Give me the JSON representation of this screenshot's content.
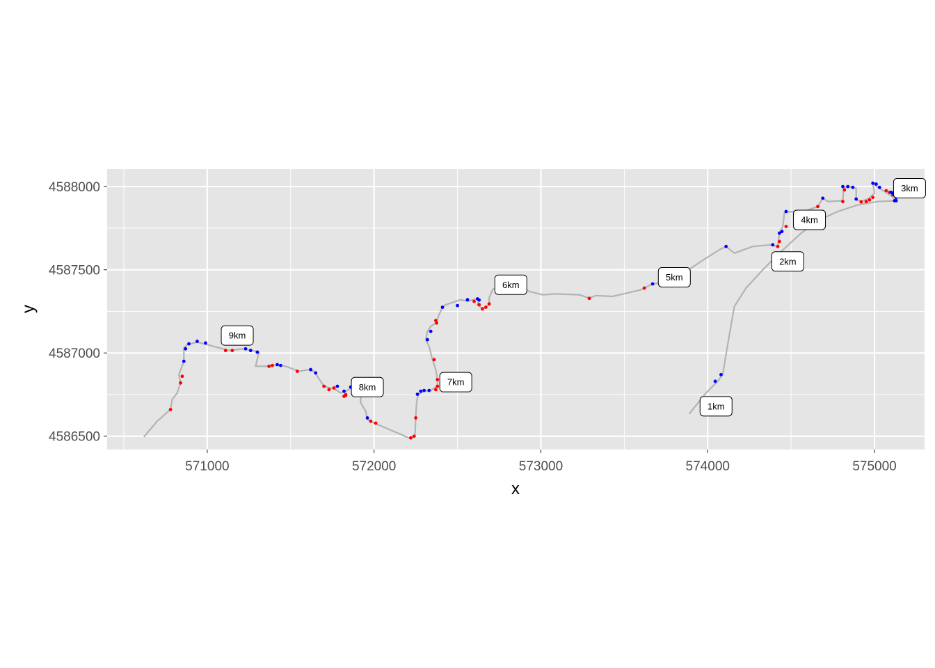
{
  "chart_data": {
    "type": "scatter",
    "title": "",
    "xlabel": "x",
    "ylabel": "y",
    "xlim": [
      570400,
      575300
    ],
    "ylim": [
      4586420,
      4588105
    ],
    "x_ticks": [
      571000,
      572000,
      573000,
      574000,
      575000
    ],
    "y_ticks": [
      4586500,
      4587000,
      4587500,
      4588000
    ],
    "x_tick_labels": [
      "571000",
      "572000",
      "573000",
      "574000",
      "575000"
    ],
    "y_tick_labels": [
      "4586500",
      "4587000",
      "4587500",
      "4588000"
    ],
    "grid": true,
    "background": "#e5e5e5",
    "colors": {
      "track": "#b3b3b3",
      "red_points": "#ff0000",
      "blue_points": "#0000ff",
      "grid": "#ffffff"
    },
    "track": [
      [
        573890,
        4586635
      ],
      [
        573990,
        4586760
      ],
      [
        574060,
        4586830
      ],
      [
        574090,
        4586870
      ],
      [
        574120,
        4587050
      ],
      [
        574160,
        4587280
      ],
      [
        574230,
        4587390
      ],
      [
        574330,
        4587500
      ],
      [
        574440,
        4587610
      ],
      [
        574560,
        4587720
      ],
      [
        574670,
        4587800
      ],
      [
        574780,
        4587850
      ],
      [
        574900,
        4587890
      ],
      [
        575020,
        4587910
      ],
      [
        575130,
        4587915
      ],
      [
        575120,
        4587930
      ],
      [
        575070,
        4587965
      ],
      [
        575020,
        4587995
      ],
      [
        574990,
        4588020
      ],
      [
        575000,
        4587960
      ],
      [
        574960,
        4587925
      ],
      [
        574920,
        4587912
      ],
      [
        574890,
        4587920
      ],
      [
        574890,
        4587990
      ],
      [
        574840,
        4588000
      ],
      [
        574815,
        4587990
      ],
      [
        574810,
        4587915
      ],
      [
        574720,
        4587910
      ],
      [
        574690,
        4587930
      ],
      [
        574660,
        4587880
      ],
      [
        574590,
        4587855
      ],
      [
        574510,
        4587850
      ],
      [
        574460,
        4587845
      ],
      [
        574450,
        4587760
      ],
      [
        574430,
        4587720
      ],
      [
        574420,
        4587640
      ],
      [
        574380,
        4587650
      ],
      [
        574270,
        4587640
      ],
      [
        574160,
        4587600
      ],
      [
        574110,
        4587640
      ],
      [
        574070,
        4587620
      ],
      [
        573990,
        4587570
      ],
      [
        573900,
        4587510
      ],
      [
        573830,
        4587460
      ],
      [
        573710,
        4587420
      ],
      [
        573670,
        4587415
      ],
      [
        573600,
        4587380
      ],
      [
        573430,
        4587340
      ],
      [
        573330,
        4587345
      ],
      [
        573290,
        4587330
      ],
      [
        573230,
        4587350
      ],
      [
        573090,
        4587355
      ],
      [
        573010,
        4587350
      ],
      [
        572930,
        4587370
      ],
      [
        572860,
        4587405
      ],
      [
        572760,
        4587410
      ],
      [
        572710,
        4587380
      ],
      [
        572690,
        4587330
      ],
      [
        572690,
        4587290
      ],
      [
        572650,
        4587265
      ],
      [
        572620,
        4587290
      ],
      [
        572630,
        4587320
      ],
      [
        572610,
        4587325
      ],
      [
        572560,
        4587310
      ],
      [
        572520,
        4587320
      ],
      [
        572430,
        4587290
      ],
      [
        572410,
        4587275
      ],
      [
        572390,
        4587230
      ],
      [
        572370,
        4587180
      ],
      [
        572340,
        4587160
      ],
      [
        572320,
        4587130
      ],
      [
        572310,
        4587080
      ],
      [
        572330,
        4587040
      ],
      [
        572350,
        4586960
      ],
      [
        572370,
        4586900
      ],
      [
        572380,
        4586840
      ],
      [
        572380,
        4586800
      ],
      [
        572340,
        4586775
      ],
      [
        572300,
        4586770
      ],
      [
        572265,
        4586752
      ],
      [
        572255,
        4586700
      ],
      [
        572250,
        4586610
      ],
      [
        572245,
        4586500
      ],
      [
        572220,
        4586485
      ],
      [
        572140,
        4586520
      ],
      [
        572010,
        4586575
      ],
      [
        571960,
        4586600
      ],
      [
        571950,
        4586650
      ],
      [
        571920,
        4586700
      ],
      [
        571920,
        4586760
      ],
      [
        571860,
        4586790
      ],
      [
        571840,
        4586775
      ],
      [
        571800,
        4586760
      ],
      [
        571770,
        4586780
      ],
      [
        571700,
        4586800
      ],
      [
        571640,
        4586890
      ],
      [
        571610,
        4586900
      ],
      [
        571550,
        4586890
      ],
      [
        571470,
        4586920
      ],
      [
        571420,
        4586930
      ],
      [
        571370,
        4586920
      ],
      [
        571290,
        4586920
      ],
      [
        571310,
        4587005
      ],
      [
        571270,
        4587015
      ],
      [
        571220,
        4587025
      ],
      [
        571130,
        4587015
      ],
      [
        571000,
        4587050
      ],
      [
        570940,
        4587065
      ],
      [
        570880,
        4587050
      ],
      [
        570860,
        4587030
      ],
      [
        570860,
        4586950
      ],
      [
        570830,
        4586870
      ],
      [
        570840,
        4586820
      ],
      [
        570820,
        4586760
      ],
      [
        570790,
        4586720
      ],
      [
        570780,
        4586660
      ],
      [
        570700,
        4586590
      ],
      [
        570620,
        4586495
      ]
    ],
    "red_points": [
      [
        575070,
        4587975
      ],
      [
        575090,
        4587965
      ],
      [
        575110,
        4587950
      ],
      [
        574990,
        4587935
      ],
      [
        574970,
        4587920
      ],
      [
        574950,
        4587910
      ],
      [
        574920,
        4587908
      ],
      [
        574820,
        4587980
      ],
      [
        574810,
        4587910
      ],
      [
        574660,
        4587880
      ],
      [
        574420,
        4587640
      ],
      [
        574430,
        4587670
      ],
      [
        574470,
        4587760
      ],
      [
        573620,
        4587390
      ],
      [
        573290,
        4587328
      ],
      [
        572690,
        4587295
      ],
      [
        572670,
        4587275
      ],
      [
        572650,
        4587265
      ],
      [
        572630,
        4587290
      ],
      [
        572600,
        4587310
      ],
      [
        572375,
        4587180
      ],
      [
        572370,
        4587195
      ],
      [
        572360,
        4586960
      ],
      [
        572380,
        4586840
      ],
      [
        572380,
        4586800
      ],
      [
        572370,
        4586780
      ],
      [
        572250,
        4586610
      ],
      [
        572240,
        4586500
      ],
      [
        572220,
        4586490
      ],
      [
        572010,
        4586578
      ],
      [
        571980,
        4586590
      ],
      [
        571830,
        4586750
      ],
      [
        571830,
        4586745
      ],
      [
        571820,
        4586740
      ],
      [
        571760,
        4586790
      ],
      [
        571730,
        4586780
      ],
      [
        571700,
        4586800
      ],
      [
        571620,
        4586900
      ],
      [
        571540,
        4586890
      ],
      [
        571390,
        4586925
      ],
      [
        571370,
        4586920
      ],
      [
        571150,
        4587015
      ],
      [
        571110,
        4587015
      ],
      [
        570850,
        4586860
      ],
      [
        570840,
        4586820
      ],
      [
        570780,
        4586660
      ]
    ],
    "blue_points": [
      [
        574080,
        4586870
      ],
      [
        574045,
        4586830
      ],
      [
        574110,
        4587640
      ],
      [
        574390,
        4587650
      ],
      [
        574430,
        4587720
      ],
      [
        574445,
        4587730
      ],
      [
        574470,
        4587850
      ],
      [
        574690,
        4587930
      ],
      [
        574810,
        4588000
      ],
      [
        574840,
        4588000
      ],
      [
        574870,
        4587995
      ],
      [
        574890,
        4587925
      ],
      [
        574990,
        4588020
      ],
      [
        575010,
        4588015
      ],
      [
        575030,
        4587995
      ],
      [
        575100,
        4587965
      ],
      [
        575110,
        4587960
      ],
      [
        575120,
        4587950
      ],
      [
        575130,
        4587935
      ],
      [
        575120,
        4587915
      ],
      [
        575130,
        4587915
      ],
      [
        573670,
        4587415
      ],
      [
        572760,
        4587410
      ],
      [
        572620,
        4587325
      ],
      [
        572630,
        4587318
      ],
      [
        572560,
        4587320
      ],
      [
        572500,
        4587285
      ],
      [
        572410,
        4587275
      ],
      [
        572340,
        4587130
      ],
      [
        572320,
        4587080
      ],
      [
        572280,
        4586770
      ],
      [
        572300,
        4586775
      ],
      [
        572330,
        4586775
      ],
      [
        572260,
        4586752
      ],
      [
        571960,
        4586610
      ],
      [
        571860,
        4586795
      ],
      [
        571820,
        4586770
      ],
      [
        571780,
        4586800
      ],
      [
        571650,
        4586880
      ],
      [
        571620,
        4586900
      ],
      [
        571440,
        4586925
      ],
      [
        571420,
        4586930
      ],
      [
        571300,
        4587005
      ],
      [
        571260,
        4587015
      ],
      [
        571230,
        4587025
      ],
      [
        570990,
        4587060
      ],
      [
        570940,
        4587070
      ],
      [
        570890,
        4587055
      ],
      [
        570870,
        4587025
      ],
      [
        570860,
        4586950
      ]
    ],
    "annotations": [
      {
        "label": "1km",
        "x": 574050,
        "y": 4586680
      },
      {
        "label": "2km",
        "x": 574480,
        "y": 4587550
      },
      {
        "label": "3km",
        "x": 575210,
        "y": 4587990
      },
      {
        "label": "4km",
        "x": 574610,
        "y": 4587800
      },
      {
        "label": "5km",
        "x": 573800,
        "y": 4587455
      },
      {
        "label": "6km",
        "x": 572820,
        "y": 4587410
      },
      {
        "label": "7km",
        "x": 572490,
        "y": 4586825
      },
      {
        "label": "8km",
        "x": 571960,
        "y": 4586795
      },
      {
        "label": "9km",
        "x": 571180,
        "y": 4587105
      }
    ]
  }
}
